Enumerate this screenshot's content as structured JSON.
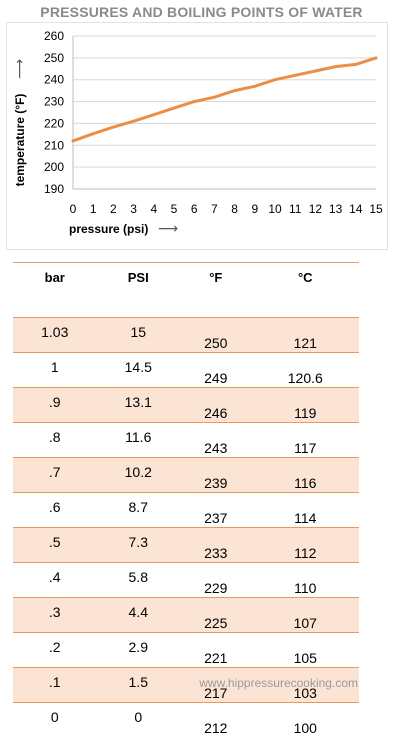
{
  "title": "PRESSURES AND BOILING POINTS OF WATER",
  "footer": "www.hippressurecooking.com",
  "colors": {
    "line": "#ed8e45",
    "border": "#e69a63",
    "shade": "#fce4d4",
    "grid": "#d9d9d9"
  },
  "chart_data": {
    "type": "line",
    "xlabel": "pressure (psi)",
    "ylabel": "temperature (°F)",
    "xlabel_arrow": "⟶",
    "ylabel_arrow": "⟶",
    "xlim": [
      0,
      15
    ],
    "ylim": [
      190,
      260
    ],
    "xticks": [
      0,
      1,
      2,
      3,
      4,
      5,
      6,
      7,
      8,
      9,
      10,
      11,
      12,
      13,
      14,
      15
    ],
    "yticks": [
      190,
      200,
      210,
      220,
      230,
      240,
      250,
      260
    ],
    "grid": true,
    "series": [
      {
        "values": [
          {
            "x": 0,
            "y": 212
          },
          {
            "x": 1,
            "y": 215.3
          },
          {
            "x": 2,
            "y": 218.3
          },
          {
            "x": 3,
            "y": 221
          },
          {
            "x": 4,
            "y": 224
          },
          {
            "x": 5,
            "y": 227
          },
          {
            "x": 6,
            "y": 230
          },
          {
            "x": 7,
            "y": 232
          },
          {
            "x": 8,
            "y": 235
          },
          {
            "x": 9,
            "y": 237
          },
          {
            "x": 10,
            "y": 240
          },
          {
            "x": 11,
            "y": 242
          },
          {
            "x": 12,
            "y": 244
          },
          {
            "x": 13,
            "y": 246
          },
          {
            "x": 14,
            "y": 247
          },
          {
            "x": 15,
            "y": 250
          }
        ]
      }
    ]
  },
  "table": {
    "headers": [
      "bar",
      "PSI",
      "°F",
      "°C"
    ],
    "rows": [
      [
        "1.03",
        "15",
        "250",
        "121"
      ],
      [
        "1",
        "14.5",
        "249",
        "120.6"
      ],
      [
        ".9",
        "13.1",
        "246",
        "119"
      ],
      [
        ".8",
        "11.6",
        "243",
        "117"
      ],
      [
        ".7",
        "10.2",
        "239",
        "116"
      ],
      [
        ".6",
        "8.7",
        "237",
        "114"
      ],
      [
        ".5",
        "7.3",
        "233",
        "112"
      ],
      [
        ".4",
        "5.8",
        "229",
        "110"
      ],
      [
        ".3",
        "4.4",
        "225",
        "107"
      ],
      [
        ".2",
        "2.9",
        "221",
        "105"
      ],
      [
        ".1",
        "1.5",
        "217",
        "103"
      ],
      [
        "0",
        "0",
        "212",
        "100"
      ]
    ]
  }
}
